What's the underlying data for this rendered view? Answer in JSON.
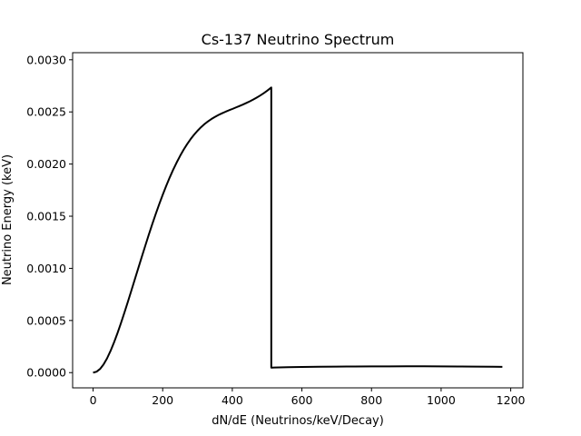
{
  "chart_data": {
    "type": "line",
    "title": "Cs-137 Neutrino Spectrum",
    "xlabel": "dN/dE (Neutrinos/keV/Decay)",
    "ylabel": "Neutrino Energy (keV)",
    "xlim": [
      -58.8,
      1235
    ],
    "ylim": [
      -0.000146,
      0.003068
    ],
    "xticks": [
      0,
      200,
      400,
      600,
      800,
      1000,
      1200
    ],
    "xtick_labels": [
      "0",
      "200",
      "400",
      "600",
      "800",
      "1000",
      "1200"
    ],
    "yticks": [
      0.0,
      0.0005,
      0.001,
      0.0015,
      0.002,
      0.0025,
      0.003
    ],
    "ytick_labels": [
      "0.0000",
      "0.0005",
      "0.0010",
      "0.0015",
      "0.0020",
      "0.0025",
      "0.0030"
    ],
    "grid": false,
    "series": [
      {
        "color": "#000000",
        "x": [
          0,
          10,
          20,
          30,
          40,
          50,
          60,
          70,
          80,
          90,
          100,
          110,
          120,
          130,
          140,
          150,
          160,
          170,
          180,
          190,
          200,
          210,
          220,
          230,
          240,
          250,
          260,
          270,
          280,
          290,
          300,
          310,
          320,
          330,
          340,
          350,
          360,
          370,
          380,
          390,
          400,
          410,
          420,
          430,
          440,
          450,
          460,
          470,
          480,
          490,
          500,
          512,
          512,
          514,
          520,
          560,
          600,
          650,
          700,
          750,
          800,
          850,
          900,
          950,
          1000,
          1050,
          1100,
          1150,
          1176
        ],
        "y": [
          0.0,
          9e-06,
          3.5e-05,
          7.8e-05,
          0.000136,
          0.000207,
          0.000288,
          0.000378,
          0.000474,
          0.000575,
          0.00068,
          0.000787,
          0.000895,
          0.001003,
          0.001111,
          0.001217,
          0.001322,
          0.001423,
          0.001521,
          0.001615,
          0.001705,
          0.00179,
          0.00187,
          0.001945,
          0.002014,
          0.002078,
          0.002137,
          0.00219,
          0.002238,
          0.002281,
          0.002319,
          0.002353,
          0.002383,
          0.002409,
          0.002432,
          0.002452,
          0.00247,
          0.002486,
          0.002501,
          0.002515,
          0.002528,
          0.002542,
          0.002556,
          0.00257,
          0.002585,
          0.002601,
          0.002618,
          0.002637,
          0.002657,
          0.002679,
          0.002703,
          0.002734,
          4.8e-05,
          4.8e-05,
          4.9e-05,
          5.2e-05,
          5.4e-05,
          5.6e-05,
          5.8e-05,
          5.9e-05,
          6e-05,
          6e-05,
          6.1e-05,
          6.1e-05,
          6e-05,
          5.9e-05,
          5.8e-05,
          5.6e-05,
          5.5e-05
        ]
      }
    ]
  }
}
